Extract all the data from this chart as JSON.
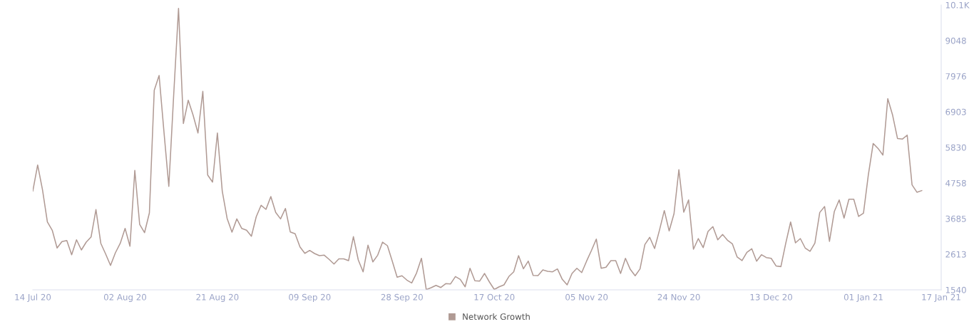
{
  "chart_data": {
    "type": "line",
    "x": [
      "2020-07-14",
      "2020-07-15",
      "2020-07-16",
      "2020-07-17",
      "2020-07-18",
      "2020-07-19",
      "2020-07-20",
      "2020-07-21",
      "2020-07-22",
      "2020-07-23",
      "2020-07-24",
      "2020-07-25",
      "2020-07-26",
      "2020-07-27",
      "2020-07-28",
      "2020-07-29",
      "2020-07-30",
      "2020-07-31",
      "2020-08-01",
      "2020-08-02",
      "2020-08-03",
      "2020-08-04",
      "2020-08-05",
      "2020-08-06",
      "2020-08-07",
      "2020-08-08",
      "2020-08-09",
      "2020-08-10",
      "2020-08-11",
      "2020-08-12",
      "2020-08-13",
      "2020-08-14",
      "2020-08-15",
      "2020-08-16",
      "2020-08-17",
      "2020-08-18",
      "2020-08-19",
      "2020-08-20",
      "2020-08-21",
      "2020-08-22",
      "2020-08-23",
      "2020-08-24",
      "2020-08-25",
      "2020-08-26",
      "2020-08-27",
      "2020-08-28",
      "2020-08-29",
      "2020-08-30",
      "2020-08-31",
      "2020-09-01",
      "2020-09-02",
      "2020-09-03",
      "2020-09-04",
      "2020-09-05",
      "2020-09-06",
      "2020-09-07",
      "2020-09-08",
      "2020-09-09",
      "2020-09-10",
      "2020-09-11",
      "2020-09-12",
      "2020-09-13",
      "2020-09-14",
      "2020-09-15",
      "2020-09-16",
      "2020-09-17",
      "2020-09-18",
      "2020-09-19",
      "2020-09-20",
      "2020-09-21",
      "2020-09-22",
      "2020-09-23",
      "2020-09-24",
      "2020-09-25",
      "2020-09-26",
      "2020-09-27",
      "2020-09-28",
      "2020-09-29",
      "2020-09-30",
      "2020-10-01",
      "2020-10-02",
      "2020-10-03",
      "2020-10-04",
      "2020-10-05",
      "2020-10-06",
      "2020-10-07",
      "2020-10-08",
      "2020-10-09",
      "2020-10-10",
      "2020-10-11",
      "2020-10-12",
      "2020-10-13",
      "2020-10-14",
      "2020-10-15",
      "2020-10-16",
      "2020-10-17",
      "2020-10-18",
      "2020-10-19",
      "2020-10-20",
      "2020-10-21",
      "2020-10-22",
      "2020-10-23",
      "2020-10-24",
      "2020-10-25",
      "2020-10-26",
      "2020-10-27",
      "2020-10-28",
      "2020-10-29",
      "2020-10-30",
      "2020-10-31",
      "2020-11-01",
      "2020-11-02",
      "2020-11-03",
      "2020-11-04",
      "2020-11-05",
      "2020-11-06",
      "2020-11-07",
      "2020-11-08",
      "2020-11-09",
      "2020-11-10",
      "2020-11-11",
      "2020-11-12",
      "2020-11-13",
      "2020-11-14",
      "2020-11-15",
      "2020-11-16",
      "2020-11-17",
      "2020-11-18",
      "2020-11-19",
      "2020-11-20",
      "2020-11-21",
      "2020-11-22",
      "2020-11-23",
      "2020-11-24",
      "2020-11-25",
      "2020-11-26",
      "2020-11-27",
      "2020-11-28",
      "2020-11-29",
      "2020-11-30",
      "2020-12-01",
      "2020-12-02",
      "2020-12-03",
      "2020-12-04",
      "2020-12-05",
      "2020-12-06",
      "2020-12-07",
      "2020-12-08",
      "2020-12-09",
      "2020-12-10",
      "2020-12-11",
      "2020-12-12",
      "2020-12-13",
      "2020-12-14",
      "2020-12-15",
      "2020-12-16",
      "2020-12-17",
      "2020-12-18",
      "2020-12-19",
      "2020-12-20",
      "2020-12-21",
      "2020-12-22",
      "2020-12-23",
      "2020-12-24",
      "2020-12-25",
      "2020-12-26",
      "2020-12-27",
      "2020-12-28",
      "2020-12-29",
      "2020-12-30",
      "2020-12-31",
      "2021-01-01",
      "2021-01-02",
      "2021-01-03",
      "2021-01-04",
      "2021-01-05",
      "2021-01-06",
      "2021-01-07",
      "2021-01-08",
      "2021-01-09",
      "2021-01-10",
      "2021-01-11",
      "2021-01-12",
      "2021-01-13"
    ],
    "series": [
      {
        "name": "Network Growth",
        "color": "#b09a94",
        "values": [
          4515,
          5300,
          4550,
          3585,
          3335,
          2800,
          2992,
          3027,
          2598,
          3048,
          2741,
          2977,
          3134,
          3957,
          2941,
          2619,
          2276,
          2655,
          2941,
          3391,
          2855,
          5138,
          3513,
          3262,
          3857,
          7553,
          7996,
          6300,
          4657,
          7400,
          10020,
          6551,
          7252,
          6802,
          6265,
          7518,
          5000,
          4785,
          6265,
          4515,
          3691,
          3277,
          3677,
          3391,
          3335,
          3155,
          3743,
          4086,
          3964,
          4350,
          3872,
          3677,
          3992,
          3284,
          3228,
          2833,
          2640,
          2726,
          2634,
          2570,
          2584,
          2456,
          2319,
          2475,
          2475,
          2419,
          3142,
          2441,
          2083,
          2885,
          2383,
          2584,
          2977,
          2870,
          2405,
          1920,
          1963,
          1834,
          1748,
          2048,
          2490,
          1545,
          1604,
          1675,
          1611,
          1727,
          1718,
          1941,
          1855,
          1632,
          2190,
          1812,
          1804,
          2033,
          1776,
          1550,
          1632,
          1690,
          1941,
          2083,
          2570,
          2175,
          2405,
          1975,
          1969,
          2141,
          2098,
          2083,
          2169,
          1855,
          1690,
          2033,
          2190,
          2061,
          2405,
          2726,
          3069,
          2190,
          2220,
          2420,
          2420,
          2033,
          2490,
          2155,
          1963,
          2169,
          2906,
          3121,
          2784,
          3335,
          3928,
          3314,
          3835,
          5160,
          3880,
          4250,
          2763,
          3084,
          2812,
          3299,
          3443,
          3048,
          3207,
          3035,
          2928,
          2527,
          2420,
          2670,
          2778,
          2405,
          2598,
          2512,
          2490,
          2261,
          2240,
          2941,
          3584,
          2956,
          3084,
          2800,
          2700,
          2950,
          3870,
          4050,
          3000,
          3900,
          4250,
          3700,
          4270,
          4270,
          3750,
          3850,
          5000,
          5950,
          5800,
          5600,
          7300,
          6800,
          6100,
          6080,
          6200,
          4700,
          4480,
          4530
        ]
      }
    ],
    "xlim": [
      "2020-07-14",
      "2021-01-17"
    ],
    "xticks": [
      {
        "value": "2020-07-14",
        "label": "14 Jul 20"
      },
      {
        "value": "2020-08-02",
        "label": "02 Aug 20"
      },
      {
        "value": "2020-08-21",
        "label": "21 Aug 20"
      },
      {
        "value": "2020-09-09",
        "label": "09 Sep 20"
      },
      {
        "value": "2020-09-28",
        "label": "28 Sep 20"
      },
      {
        "value": "2020-10-17",
        "label": "17 Oct 20"
      },
      {
        "value": "2020-11-05",
        "label": "05 Nov 20"
      },
      {
        "value": "2020-11-24",
        "label": "24 Nov 20"
      },
      {
        "value": "2020-12-13",
        "label": "13 Dec 20"
      },
      {
        "value": "2021-01-01",
        "label": "01 Jan 21"
      },
      {
        "value": "2021-01-17",
        "label": "17 Jan 21"
      }
    ],
    "ylim": [
      1540,
      10120.8
    ],
    "yticks": [
      1540,
      {
        "value": 2612.6,
        "label": "2613"
      },
      {
        "value": 3685.2,
        "label": "3685"
      },
      {
        "value": 4757.8,
        "label": "4758"
      },
      {
        "value": 5830.4,
        "label": "5830"
      },
      {
        "value": 6903,
        "label": "6903"
      },
      {
        "value": 7975.6,
        "label": "7976"
      },
      {
        "value": 9048.2,
        "label": "9048"
      },
      {
        "value": 10120.8,
        "label": "10.1K"
      }
    ],
    "grid": false,
    "legend": "bottom",
    "marker": "none",
    "line_style": "solid"
  }
}
